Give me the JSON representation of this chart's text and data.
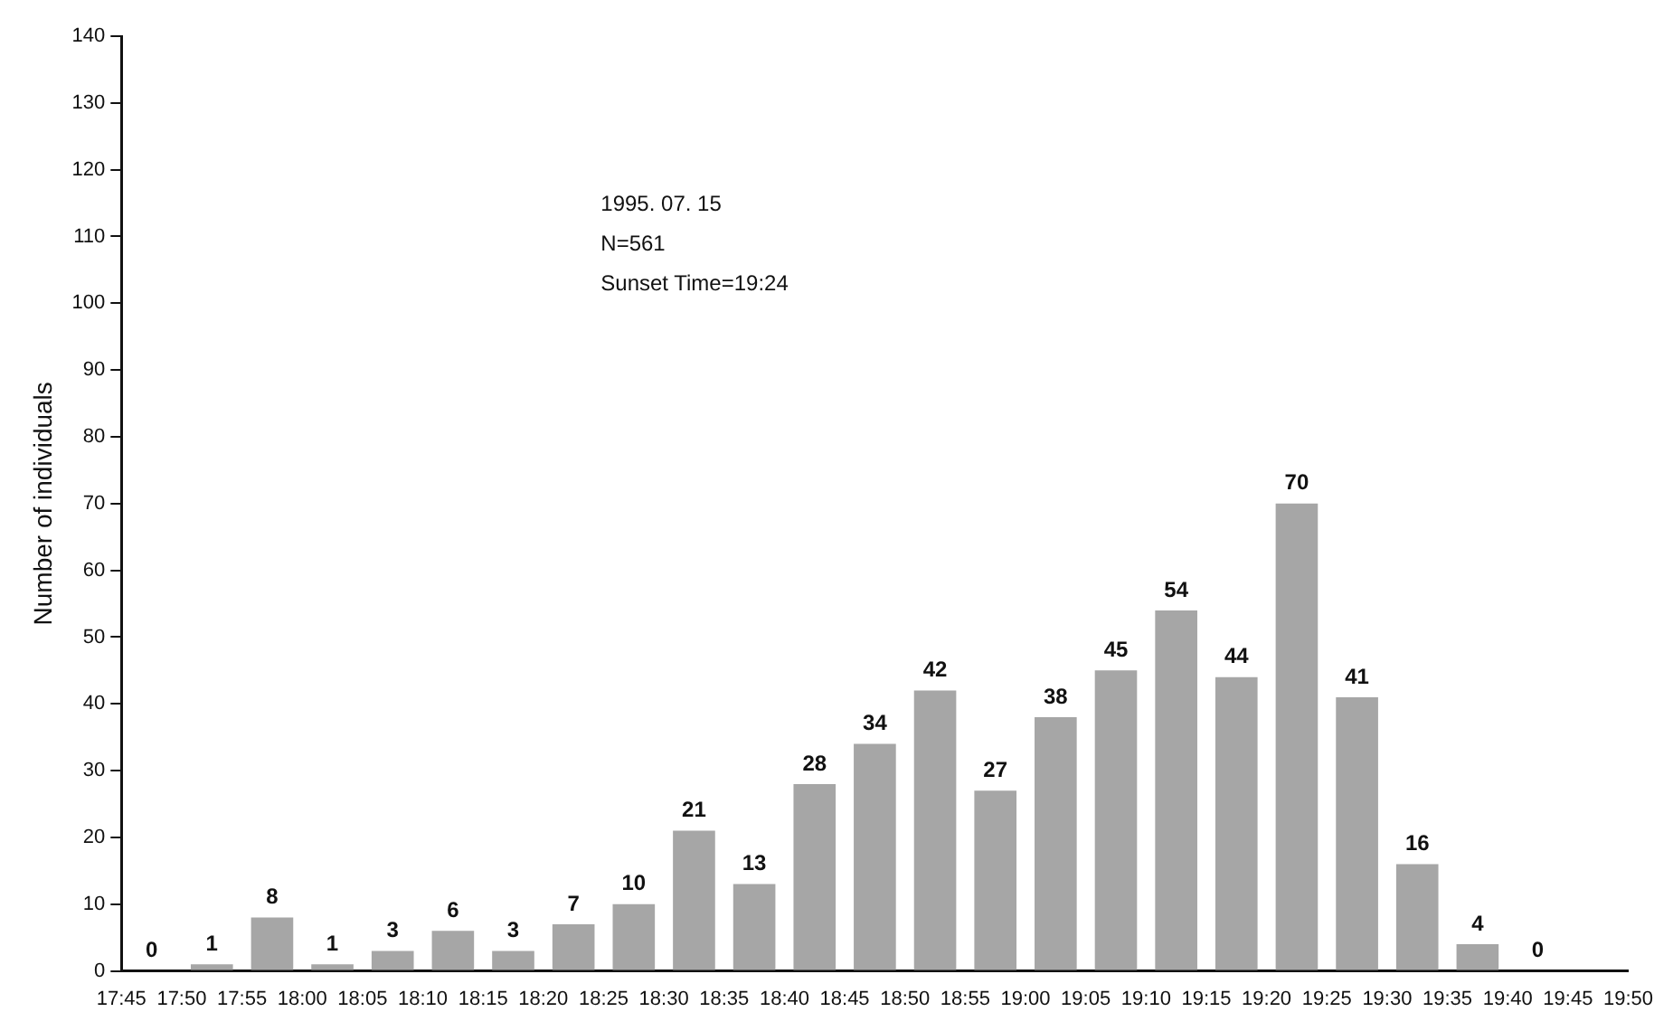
{
  "chart_data": {
    "type": "histogram",
    "ylabel": "Number of individuals",
    "annotations": [
      "1995. 07. 15",
      "N=561",
      "Sunset Time=19:24"
    ],
    "bins": [
      17.75,
      17.8333,
      17.9167,
      18,
      18.0833,
      18.1667,
      18.25,
      18.3333,
      18.4167,
      18.5,
      18.5833,
      18.6667,
      18.75,
      18.8333,
      18.9167,
      19,
      19.0833,
      19.1667,
      19.25,
      19.3333,
      19.4167,
      19.5,
      19.5833,
      19.6667,
      19.75
    ],
    "values": [
      0,
      1,
      8,
      1,
      3,
      6,
      3,
      7,
      10,
      21,
      13,
      28,
      34,
      42,
      27,
      38,
      45,
      54,
      44,
      70,
      41,
      16,
      4,
      0
    ],
    "color": "#a6a6a6",
    "data_labels": true,
    "grid": false,
    "legend": false,
    "xlim": [
      17.75,
      19.8333
    ],
    "xticks": [
      {
        "value": 17.75,
        "label": "17:45"
      },
      {
        "value": 17.8333,
        "label": "17:50"
      },
      {
        "value": 17.9167,
        "label": "17:55"
      },
      {
        "value": 18,
        "label": "18:00"
      },
      {
        "value": 18.0833,
        "label": "18:05"
      },
      {
        "value": 18.1667,
        "label": "18:10"
      },
      {
        "value": 18.25,
        "label": "18:15"
      },
      {
        "value": 18.3333,
        "label": "18:20"
      },
      {
        "value": 18.4167,
        "label": "18:25"
      },
      {
        "value": 18.5,
        "label": "18:30"
      },
      {
        "value": 18.5833,
        "label": "18:35"
      },
      {
        "value": 18.6667,
        "label": "18:40"
      },
      {
        "value": 18.75,
        "label": "18:45"
      },
      {
        "value": 18.8333,
        "label": "18:50"
      },
      {
        "value": 18.9167,
        "label": "18:55"
      },
      {
        "value": 19,
        "label": "19:00"
      },
      {
        "value": 19.0833,
        "label": "19:05"
      },
      {
        "value": 19.1667,
        "label": "19:10"
      },
      {
        "value": 19.25,
        "label": "19:15"
      },
      {
        "value": 19.3333,
        "label": "19:20"
      },
      {
        "value": 19.4167,
        "label": "19:25"
      },
      {
        "value": 19.5,
        "label": "19:30"
      },
      {
        "value": 19.5833,
        "label": "19:35"
      },
      {
        "value": 19.6667,
        "label": "19:40"
      },
      {
        "value": 19.75,
        "label": "19:45"
      },
      {
        "value": 19.8333,
        "label": "19:50"
      }
    ],
    "ylim": [
      0,
      140
    ],
    "yticks": [
      0,
      10,
      20,
      30,
      40,
      50,
      60,
      70,
      80,
      90,
      100,
      110,
      120,
      130,
      140
    ]
  }
}
